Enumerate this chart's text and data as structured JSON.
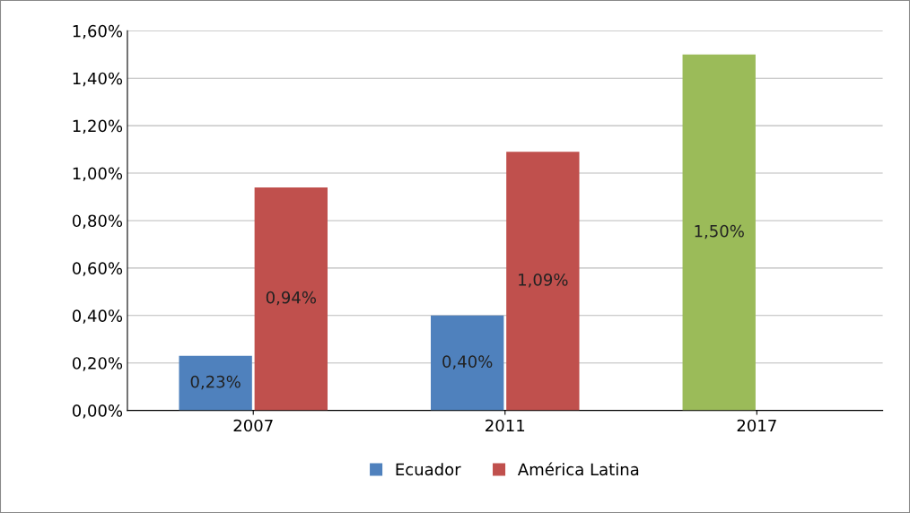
{
  "chart_data": {
    "type": "bar",
    "categories": [
      "2007",
      "2011",
      "2017"
    ],
    "series": [
      {
        "name": "Ecuador",
        "color": "#4f81bd",
        "colors": [
          "#4f81bd",
          "#4f81bd",
          "#9bbb59"
        ],
        "values": [
          0.23,
          0.4,
          1.5
        ],
        "value_labels": [
          "0,23%",
          "0,40%",
          "1,50%"
        ]
      },
      {
        "name": "América Latina",
        "color": "#c0504d",
        "values": [
          0.94,
          1.09,
          null
        ],
        "value_labels": [
          "0,94%",
          "1,09%",
          null
        ]
      }
    ],
    "ylim": [
      0,
      1.6
    ],
    "yticks": [
      {
        "value": 0,
        "label": "0,00%"
      },
      {
        "value": 0.2,
        "label": "0,20%"
      },
      {
        "value": 0.4,
        "label": "0,40%"
      },
      {
        "value": 0.6,
        "label": "0,60%"
      },
      {
        "value": 0.8,
        "label": "0,80%"
      },
      {
        "value": 1.0,
        "label": "1,00%"
      },
      {
        "value": 1.2,
        "label": "1,20%"
      },
      {
        "value": 1.4,
        "label": "1,40%"
      },
      {
        "value": 1.6,
        "label": "1,60%"
      }
    ],
    "grid": "y",
    "legend": "bottom"
  }
}
